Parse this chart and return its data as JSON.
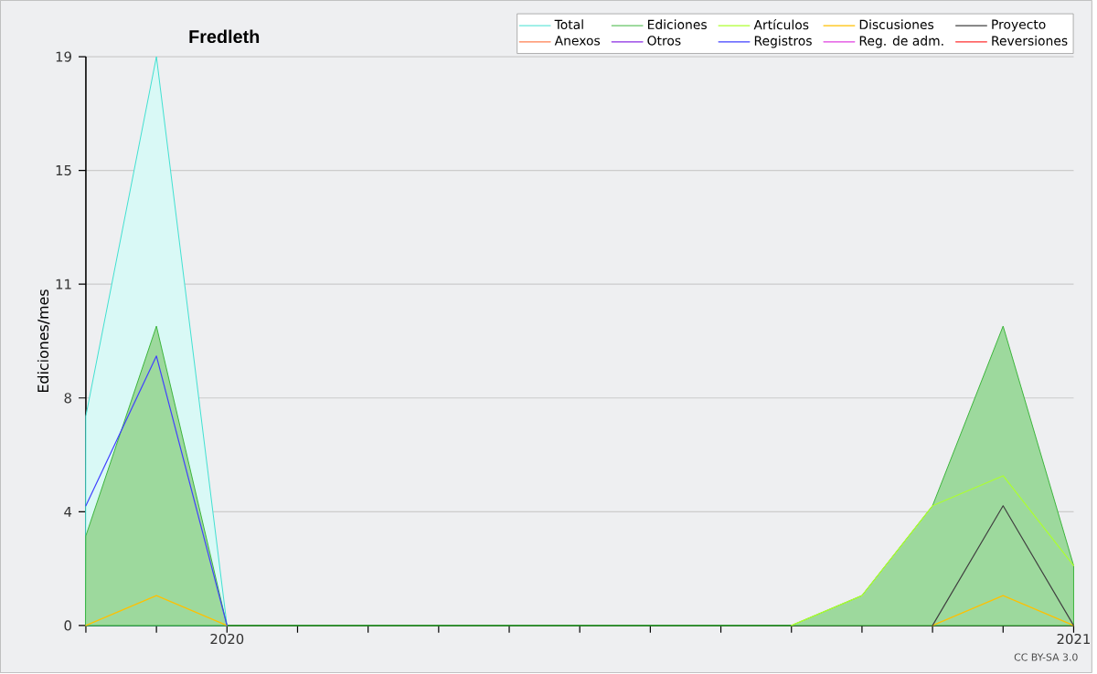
{
  "chart_data": {
    "type": "line",
    "title": "Fredleth",
    "ylabel": "Ediciones/mes",
    "x": [
      "2019-11",
      "2019-12",
      "2020-01",
      "2020-02",
      "2020-03",
      "2020-04",
      "2020-05",
      "2020-06",
      "2020-07",
      "2020-08",
      "2020-09",
      "2020-10",
      "2020-11",
      "2020-12",
      "2021-01"
    ],
    "series": [
      {
        "name": "Total",
        "type": "area",
        "color": "#40e0d0",
        "values": [
          7,
          19,
          0,
          null,
          null,
          null,
          null,
          null,
          null,
          null,
          null,
          null,
          null,
          null,
          null
        ]
      },
      {
        "name": "Ediciones",
        "type": "area",
        "color": "#3cb43c",
        "values": [
          3,
          10,
          0,
          0,
          0,
          0,
          0,
          0,
          0,
          0,
          0,
          1,
          4,
          10,
          2
        ]
      },
      {
        "name": "Artículos",
        "color": "#adff2f",
        "values": [
          null,
          null,
          null,
          null,
          null,
          null,
          null,
          null,
          null,
          null,
          0,
          1,
          4,
          5,
          2
        ]
      },
      {
        "name": "Discusiones",
        "color": "#ffc000",
        "values": [
          0,
          1,
          0,
          null,
          null,
          null,
          null,
          null,
          null,
          null,
          null,
          null,
          0,
          1,
          0
        ]
      },
      {
        "name": "Proyecto",
        "color": "#404040",
        "values": [
          null,
          null,
          null,
          null,
          null,
          null,
          null,
          null,
          null,
          null,
          null,
          null,
          0,
          4,
          0
        ]
      },
      {
        "name": "Anexos",
        "color": "#ff7f50",
        "values": [
          null,
          null,
          null,
          null,
          null,
          null,
          null,
          null,
          null,
          null,
          null,
          null,
          null,
          null,
          null
        ]
      },
      {
        "name": "Otros",
        "color": "#8a2be2",
        "values": [
          null,
          null,
          null,
          null,
          null,
          null,
          null,
          null,
          null,
          null,
          null,
          null,
          null,
          null,
          null
        ]
      },
      {
        "name": "Registros",
        "color": "#4040ff",
        "values": [
          4,
          9,
          0,
          null,
          null,
          null,
          null,
          null,
          null,
          null,
          null,
          null,
          null,
          null,
          null
        ]
      },
      {
        "name": "Reg. de adm.",
        "color": "#e040e0",
        "values": [
          null,
          null,
          null,
          null,
          null,
          null,
          null,
          null,
          null,
          null,
          null,
          null,
          null,
          null,
          null
        ]
      },
      {
        "name": "Reversiones",
        "color": "#ff3030",
        "values": [
          null,
          null,
          null,
          null,
          null,
          null,
          null,
          null,
          null,
          null,
          null,
          null,
          null,
          null,
          null
        ]
      }
    ],
    "xlim": [
      "2019-11",
      "2021-01"
    ],
    "xticks": [
      {
        "value": "2019-11",
        "label": null
      },
      {
        "value": "2019-12",
        "label": null
      },
      {
        "value": "2020-01",
        "label": "2020"
      },
      {
        "value": "2020-02",
        "label": null
      },
      {
        "value": "2020-03",
        "label": null
      },
      {
        "value": "2020-04",
        "label": null
      },
      {
        "value": "2020-05",
        "label": null
      },
      {
        "value": "2020-06",
        "label": null
      },
      {
        "value": "2020-07",
        "label": null
      },
      {
        "value": "2020-08",
        "label": null
      },
      {
        "value": "2020-09",
        "label": null
      },
      {
        "value": "2020-10",
        "label": null
      },
      {
        "value": "2020-11",
        "label": null
      },
      {
        "value": "2020-12",
        "label": null
      },
      {
        "value": "2021-01",
        "label": "2021"
      }
    ],
    "ylim": [
      0,
      19
    ],
    "yticks": [
      {
        "value": 0,
        "label": "0"
      },
      {
        "value": 3.8,
        "label": "4"
      },
      {
        "value": 7.6,
        "label": "8"
      },
      {
        "value": 11.4,
        "label": "11"
      },
      {
        "value": 15.2,
        "label": "15"
      },
      {
        "value": 19,
        "label": "19"
      }
    ],
    "grid": "y",
    "legend": "top right",
    "marker": "none",
    "line_style": "solid",
    "annotations": [
      "CC BY-SA 3.0"
    ]
  }
}
